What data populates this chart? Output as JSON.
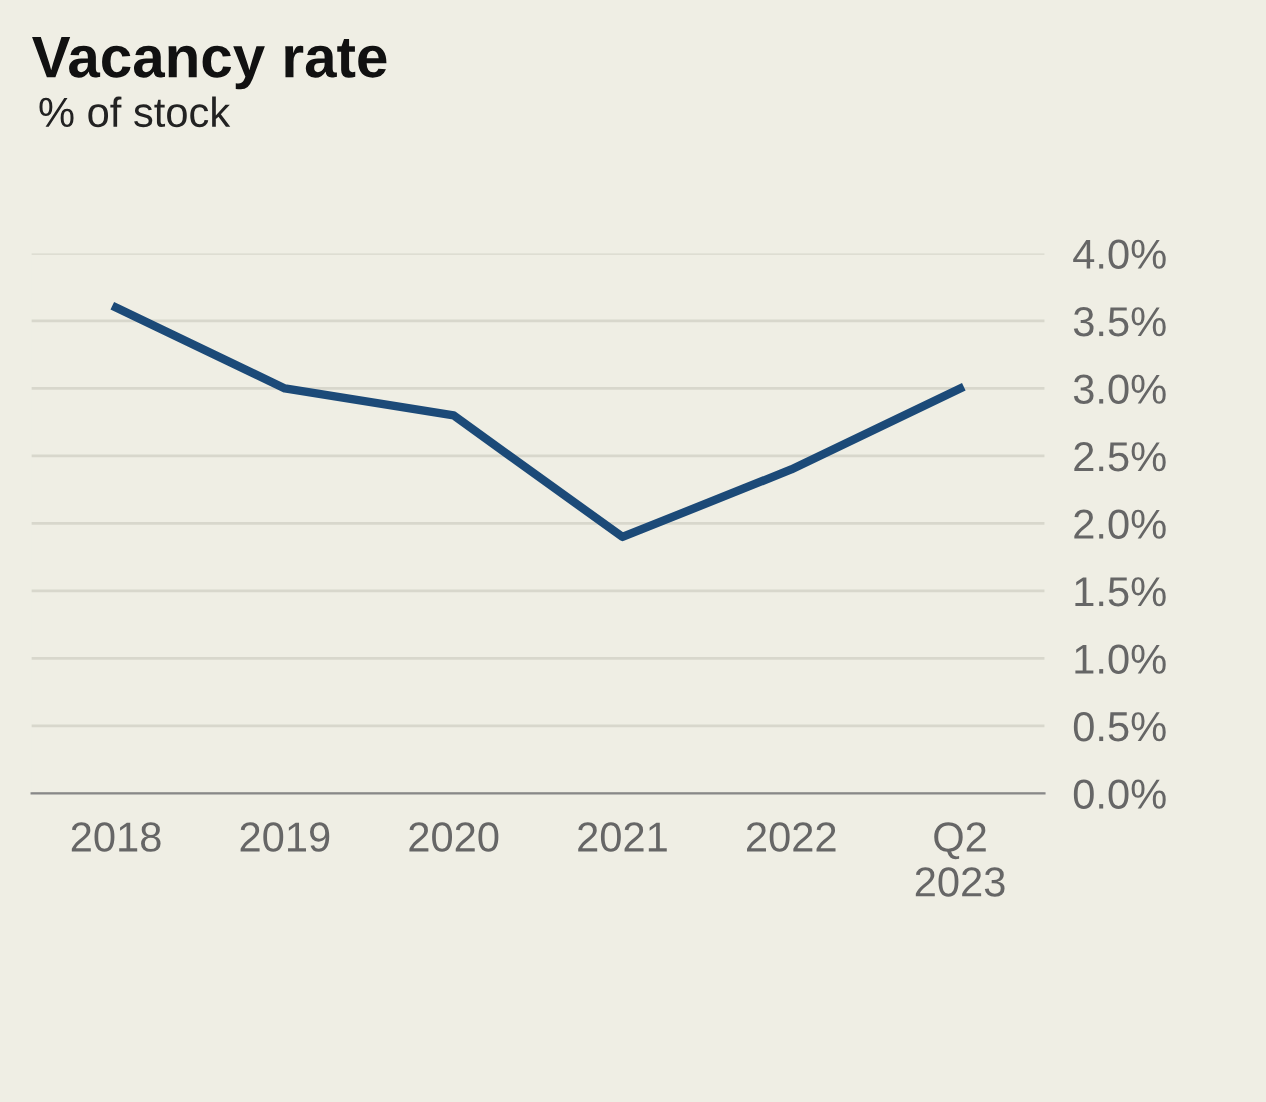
{
  "chart_data": {
    "type": "line",
    "title": "Vacancy rate",
    "subtitle": "% of stock",
    "categories": [
      "2018",
      "2019",
      "2020",
      "2021",
      "2022",
      "Q2\n2023"
    ],
    "series": [
      {
        "color": "#1c4a78",
        "values": [
          3.6,
          3.0,
          2.8,
          1.9,
          2.4,
          3.0
        ]
      }
    ],
    "ylim": [
      0,
      4.0
    ],
    "yticks": [
      {
        "value": 0,
        "label": "0.0%"
      },
      {
        "value": 0.5,
        "label": "0.5%"
      },
      {
        "value": 1.0,
        "label": "1.0%"
      },
      {
        "value": 1.5,
        "label": "1.5%"
      },
      {
        "value": 2.0,
        "label": "2.0%"
      },
      {
        "value": 2.5,
        "label": "2.5%"
      },
      {
        "value": 3.0,
        "label": "3.0%"
      },
      {
        "value": 3.5,
        "label": "3.5%"
      },
      {
        "value": 4.0,
        "label": "4.0%"
      }
    ],
    "grid": "y",
    "marker": "none",
    "line_style": "solid"
  }
}
